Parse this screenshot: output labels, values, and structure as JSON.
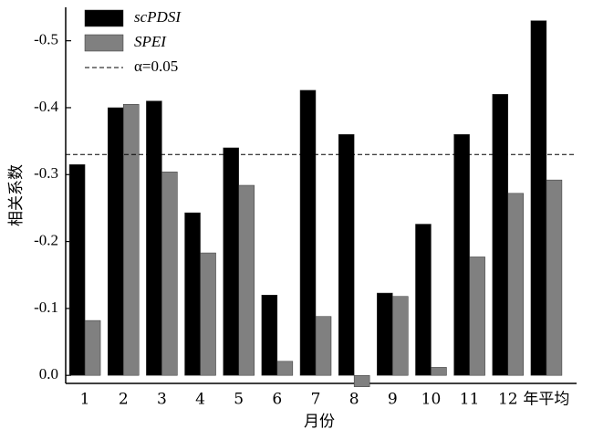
{
  "chart_data": {
    "type": "bar",
    "categories": [
      "1",
      "2",
      "3",
      "4",
      "5",
      "6",
      "7",
      "8",
      "9",
      "10",
      "11",
      "12",
      "年平均"
    ],
    "series": [
      {
        "name": "scPDSI",
        "color": "#000000",
        "values": [
          -0.315,
          -0.4,
          -0.41,
          -0.243,
          -0.34,
          -0.12,
          -0.426,
          -0.36,
          -0.123,
          -0.226,
          -0.36,
          -0.42,
          -0.53
        ]
      },
      {
        "name": "SPEI",
        "color": "#808080",
        "values": [
          -0.082,
          -0.405,
          -0.304,
          -0.183,
          -0.284,
          -0.021,
          -0.088,
          0.017,
          -0.118,
          -0.012,
          -0.177,
          -0.272,
          -0.292
        ]
      }
    ],
    "threshold": {
      "name": "α=0.05",
      "value": -0.33
    },
    "ylim": [
      0.012,
      -0.55
    ],
    "yticks": [
      {
        "value": 0,
        "label": "0.0"
      },
      -0.1,
      -0.2,
      -0.3,
      -0.4,
      -0.5
    ],
    "xlabel": "月份",
    "ylabel": "相关系数",
    "legend": "upper left"
  }
}
